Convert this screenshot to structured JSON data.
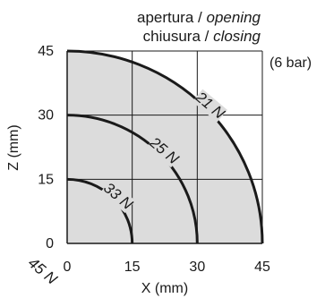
{
  "header": {
    "line1_plain": "apertura / ",
    "line1_italic": "opening",
    "line2_plain": "chiusura / ",
    "line2_italic": "closing"
  },
  "pressure_note": "(6 bar)",
  "corner_label": "45 N",
  "chart_data": {
    "type": "area",
    "xlabel": "X (mm)",
    "ylabel": "Z (mm)",
    "xlim": [
      0,
      45
    ],
    "ylim": [
      0,
      45
    ],
    "x_ticks": [
      "0",
      "15",
      "30",
      "45"
    ],
    "y_ticks": [
      "0",
      "15",
      "30",
      "45"
    ],
    "grid": true,
    "series": [
      {
        "name": "21 N",
        "radius": 45
      },
      {
        "name": "25 N",
        "radius": 30
      },
      {
        "name": "33 N",
        "radius": 15
      }
    ]
  }
}
